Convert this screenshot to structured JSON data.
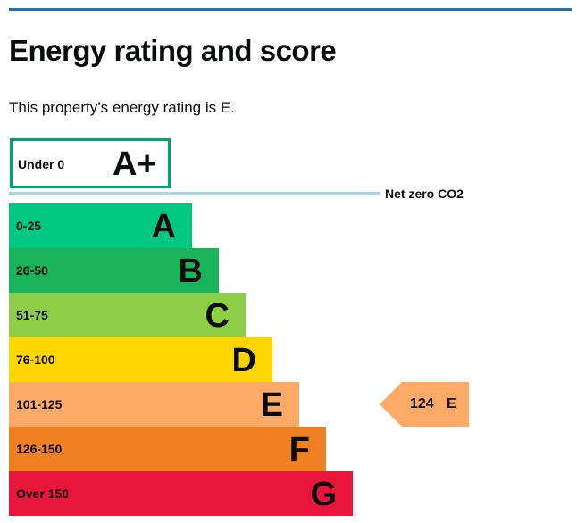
{
  "heading": "Energy rating and score",
  "summary": "This property’s energy rating is E.",
  "aplus": {
    "range": "Under 0",
    "letter": "A+",
    "color": "#00a46e"
  },
  "net_zero_label": "Net zero CO2",
  "bands": [
    {
      "range": "0-25",
      "letter": "A",
      "color": "#00c781"
    },
    {
      "range": "26-50",
      "letter": "B",
      "color": "#19b459"
    },
    {
      "range": "51-75",
      "letter": "C",
      "color": "#8dce46"
    },
    {
      "range": "76-100",
      "letter": "D",
      "color": "#ffd500"
    },
    {
      "range": "101-125",
      "letter": "E",
      "color": "#fcaa65"
    },
    {
      "range": "126-150",
      "letter": "F",
      "color": "#ef8023"
    },
    {
      "range": "Over 150",
      "letter": "G",
      "color": "#e9153b"
    }
  ],
  "current": {
    "score": "124",
    "letter": "E",
    "color": "#fcaa65"
  }
}
